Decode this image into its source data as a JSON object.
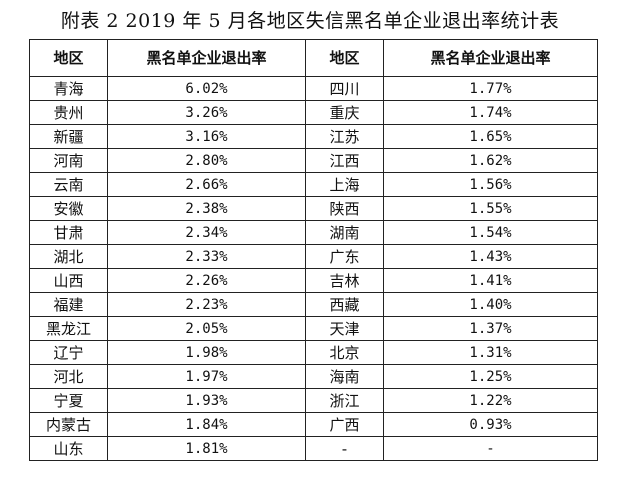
{
  "title": "附表 2    2019 年 5 月各地区失信黑名单企业退出率统计表",
  "headers": [
    "地区",
    "黑名单企业退出率",
    "地区",
    "黑名单企业退出率"
  ],
  "rows": [
    [
      "青海",
      "6.02%",
      "四川",
      "1.77%"
    ],
    [
      "贵州",
      "3.26%",
      "重庆",
      "1.74%"
    ],
    [
      "新疆",
      "3.16%",
      "江苏",
      "1.65%"
    ],
    [
      "河南",
      "2.80%",
      "江西",
      "1.62%"
    ],
    [
      "云南",
      "2.66%",
      "上海",
      "1.56%"
    ],
    [
      "安徽",
      "2.38%",
      "陕西",
      "1.55%"
    ],
    [
      "甘肃",
      "2.34%",
      "湖南",
      "1.54%"
    ],
    [
      "湖北",
      "2.33%",
      "广东",
      "1.43%"
    ],
    [
      "山西",
      "2.26%",
      "吉林",
      "1.41%"
    ],
    [
      "福建",
      "2.23%",
      "西藏",
      "1.40%"
    ],
    [
      "黑龙江",
      "2.05%",
      "天津",
      "1.37%"
    ],
    [
      "辽宁",
      "1.98%",
      "北京",
      "1.31%"
    ],
    [
      "河北",
      "1.97%",
      "海南",
      "1.25%"
    ],
    [
      "宁夏",
      "1.93%",
      "浙江",
      "1.22%"
    ],
    [
      "内蒙古",
      "1.84%",
      "广西",
      "0.93%"
    ],
    [
      "山东",
      "1.81%",
      "-",
      "-"
    ]
  ]
}
